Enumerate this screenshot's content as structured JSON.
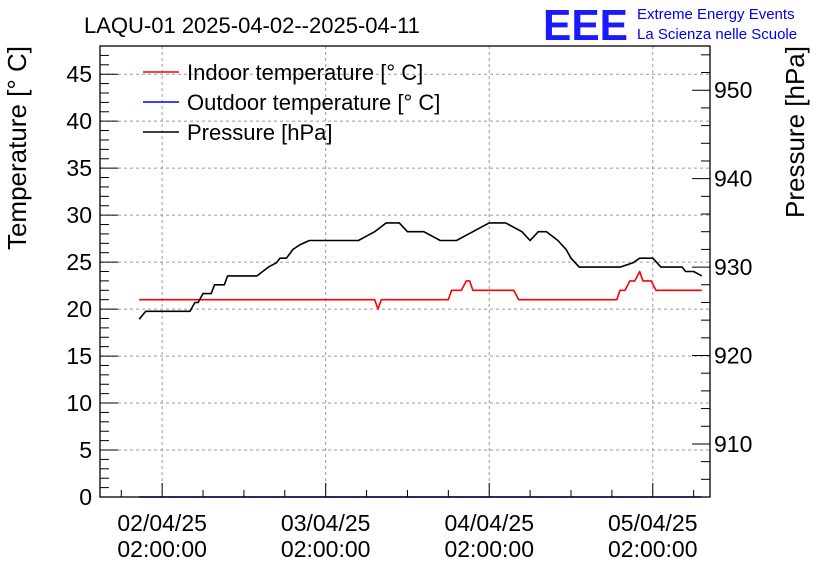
{
  "chart_data": {
    "type": "line",
    "title": "LAQU-01 2025-04-02--2025-04-11",
    "ylabel": "Temperature [° C]",
    "y2label": "Pressure [hPa]",
    "ylim": [
      0,
      48
    ],
    "y2lim": [
      904,
      955
    ],
    "xlim": [
      1.62,
      5.35
    ],
    "yticks": [
      {
        "value": 0,
        "label": "0"
      },
      {
        "value": 5,
        "label": "5"
      },
      {
        "value": 10,
        "label": "10"
      },
      {
        "value": 15,
        "label": "15"
      },
      {
        "value": 20,
        "label": "20"
      },
      {
        "value": 25,
        "label": "25"
      },
      {
        "value": 30,
        "label": "30"
      },
      {
        "value": 35,
        "label": "35"
      },
      {
        "value": 40,
        "label": "40"
      },
      {
        "value": 45,
        "label": "45"
      }
    ],
    "y2ticks": [
      {
        "value": 910,
        "label": "910"
      },
      {
        "value": 920,
        "label": "920"
      },
      {
        "value": 930,
        "label": "930"
      },
      {
        "value": 940,
        "label": "940"
      },
      {
        "value": 950,
        "label": "950"
      }
    ],
    "xticks": [
      {
        "value": 2,
        "date": "02/04/25",
        "time": "02:00:00"
      },
      {
        "value": 3,
        "date": "03/04/25",
        "time": "02:00:00"
      },
      {
        "value": 4,
        "date": "04/04/25",
        "time": "02:00:00"
      },
      {
        "value": 5,
        "date": "05/04/25",
        "time": "02:00:00"
      }
    ],
    "legend_position": "top-left",
    "series": [
      {
        "name": "Indoor temperature [° C]",
        "color": "#ff0000",
        "axis": "left",
        "x": [
          1.86,
          2.17,
          2.2,
          2.22,
          2.24,
          2.3,
          2.5,
          2.75,
          3.0,
          3.15,
          3.3,
          3.32,
          3.34,
          3.36,
          3.55,
          3.75,
          3.77,
          3.8,
          3.83,
          3.86,
          3.88,
          3.9,
          4.0,
          4.1,
          4.15,
          4.18,
          4.3,
          4.5,
          4.7,
          4.78,
          4.8,
          4.83,
          4.86,
          4.89,
          4.92,
          4.94,
          4.96,
          4.99,
          5.02,
          5.06,
          5.1,
          5.2,
          5.3
        ],
        "values": [
          21,
          21,
          21,
          21,
          21,
          21,
          21,
          21,
          21,
          21,
          21,
          20,
          21,
          21,
          21,
          21,
          22,
          22,
          22,
          23,
          23,
          22,
          22,
          22,
          22,
          21,
          21,
          21,
          21,
          21,
          22,
          22,
          23,
          23,
          24,
          23,
          23,
          23,
          22,
          22,
          22,
          22,
          22
        ]
      },
      {
        "name": "Outdoor temperature [° C]",
        "color": "#0000ff",
        "axis": "left",
        "x": [
          1.86,
          5.3
        ],
        "values": [
          0,
          0
        ]
      },
      {
        "name": "Pressure [hPa]",
        "color": "#000000",
        "axis": "right",
        "x": [
          1.86,
          1.9,
          1.95,
          2.05,
          2.17,
          2.2,
          2.22,
          2.25,
          2.3,
          2.32,
          2.38,
          2.4,
          2.45,
          2.5,
          2.53,
          2.58,
          2.65,
          2.7,
          2.72,
          2.76,
          2.8,
          2.84,
          2.9,
          3.0,
          3.05,
          3.1,
          3.15,
          3.2,
          3.25,
          3.3,
          3.37,
          3.42,
          3.45,
          3.5,
          3.6,
          3.7,
          3.75,
          3.8,
          3.85,
          3.9,
          3.95,
          4.0,
          4.05,
          4.1,
          4.2,
          4.25,
          4.3,
          4.35,
          4.42,
          4.47,
          4.5,
          4.55,
          4.65,
          4.7,
          4.75,
          4.8,
          4.88,
          4.92,
          5.0,
          5.05,
          5.1,
          5.15,
          5.18,
          5.2,
          5.25,
          5.3
        ],
        "values": [
          924.1,
          925.0,
          925.0,
          925.0,
          925.0,
          926.0,
          926.0,
          927.0,
          927.0,
          928.0,
          928.0,
          929.0,
          929.0,
          929.0,
          929.0,
          929.0,
          930.0,
          930.5,
          931.0,
          931.0,
          932.0,
          932.5,
          933.0,
          933.0,
          933.0,
          933.0,
          933.0,
          933.0,
          933.5,
          934.0,
          935.0,
          935.0,
          935.0,
          934.0,
          934.0,
          933.0,
          933.0,
          933.0,
          933.5,
          934.0,
          934.5,
          935.0,
          935.0,
          935.0,
          934.0,
          933.0,
          934.0,
          934.0,
          933.0,
          932.0,
          931.0,
          930.0,
          930.0,
          930.0,
          930.0,
          930.0,
          930.5,
          931.0,
          931.0,
          930.0,
          930.0,
          930.0,
          930.0,
          929.5,
          929.5,
          929.0
        ]
      }
    ]
  },
  "logo": {
    "mark": "EEE",
    "line1": "Extreme Energy Events",
    "line2": "La Scienza nelle Scuole"
  }
}
